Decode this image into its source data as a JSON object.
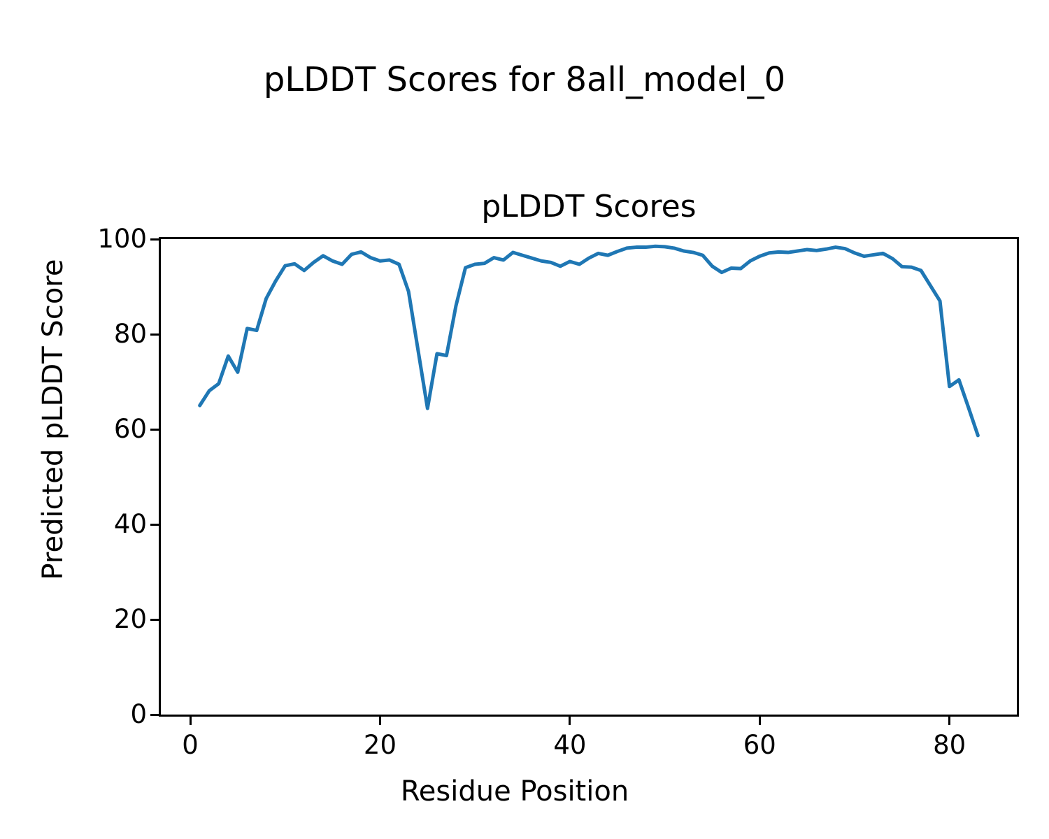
{
  "figure": {
    "suptitle": "pLDDT Scores for 8all_model_0",
    "background_color": "#ffffff",
    "text_color": "#000000"
  },
  "chart_data": {
    "type": "line",
    "title": "pLDDT Scores",
    "xlabel": "Residue Position",
    "ylabel": "Predicted pLDDT Score",
    "legend_position": "none",
    "grid": false,
    "xlim": [
      -3.1,
      87.1
    ],
    "ylim": [
      0,
      100
    ],
    "xticks": [
      0,
      20,
      40,
      60,
      80
    ],
    "yticks": [
      0,
      20,
      40,
      60,
      80,
      100
    ],
    "x": [
      1,
      2,
      3,
      4,
      5,
      6,
      7,
      8,
      9,
      10,
      11,
      12,
      13,
      14,
      15,
      16,
      17,
      18,
      19,
      20,
      21,
      22,
      23,
      24,
      25,
      26,
      27,
      28,
      29,
      30,
      31,
      32,
      33,
      34,
      35,
      36,
      37,
      38,
      39,
      40,
      41,
      42,
      43,
      44,
      45,
      46,
      47,
      48,
      49,
      50,
      51,
      52,
      53,
      54,
      55,
      56,
      57,
      58,
      59,
      60,
      61,
      62,
      63,
      64,
      65,
      66,
      67,
      68,
      69,
      70,
      71,
      72,
      73,
      74,
      75,
      76,
      77,
      78,
      79,
      80,
      81,
      82,
      83
    ],
    "series": [
      {
        "name": "pLDDT",
        "color": "#1f77b4",
        "line_width": 5,
        "values": [
          65.0,
          68.1,
          69.6,
          75.4,
          72.0,
          81.2,
          80.8,
          87.5,
          91.2,
          94.4,
          94.8,
          93.4,
          95.1,
          96.5,
          95.4,
          94.7,
          96.8,
          97.3,
          96.1,
          95.4,
          95.6,
          94.7,
          89.0,
          76.7,
          64.4,
          75.9,
          75.5,
          86.0,
          94.0,
          94.7,
          94.9,
          96.1,
          95.6,
          97.2,
          96.6,
          96.0,
          95.4,
          95.1,
          94.3,
          95.3,
          94.7,
          96.0,
          97.0,
          96.6,
          97.4,
          98.1,
          98.3,
          98.3,
          98.5,
          98.4,
          98.1,
          97.5,
          97.2,
          96.6,
          94.3,
          93.0,
          93.9,
          93.8,
          95.4,
          96.4,
          97.1,
          97.3,
          97.2,
          97.5,
          97.8,
          97.6,
          97.9,
          98.3,
          98.0,
          97.1,
          96.4,
          96.7,
          97.0,
          95.9,
          94.2,
          94.1,
          93.4,
          90.2,
          87.0,
          69.0,
          70.4,
          64.6,
          58.7
        ]
      }
    ]
  }
}
